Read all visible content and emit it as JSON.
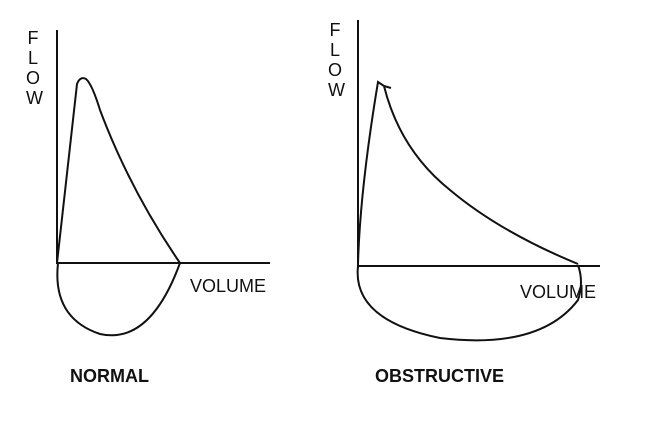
{
  "panels": [
    {
      "y_label": "FLOW",
      "x_label": "VOLUME",
      "caption": "NORMAL"
    },
    {
      "y_label": "FLOW",
      "x_label": "VOLUME",
      "caption": "OBSTRUCTIVE"
    }
  ]
}
